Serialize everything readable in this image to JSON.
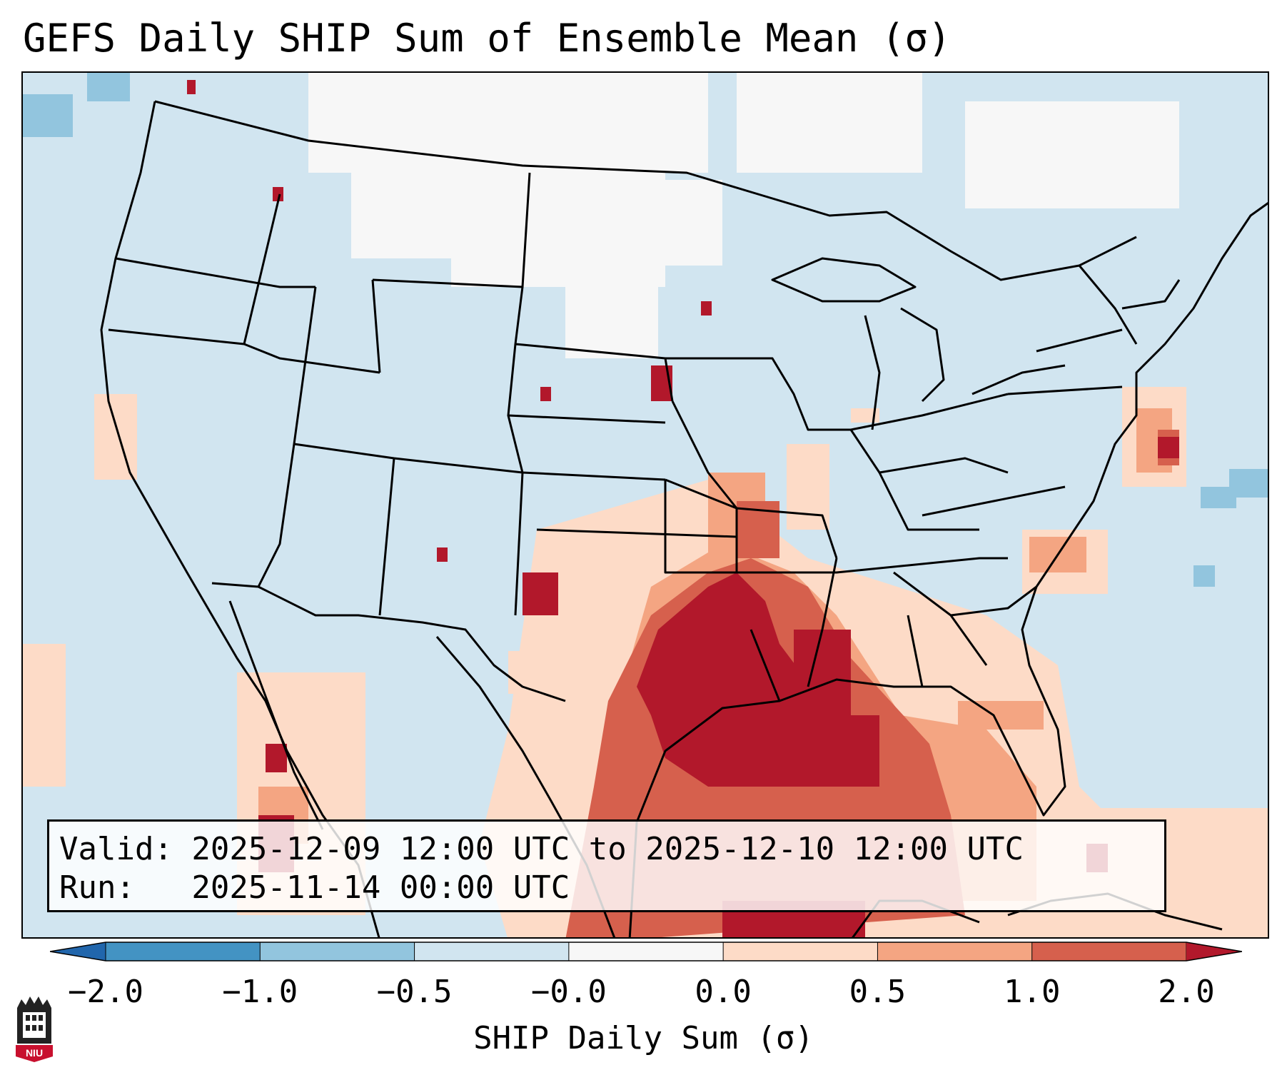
{
  "title": "GEFS Daily SHIP Sum of Ensemble Mean (σ)",
  "info": {
    "valid": "Valid: 2025-12-09 12:00 UTC to 2025-12-10 12:00 UTC",
    "run": "Run:   2025-11-14 00:00 UTC"
  },
  "colorbar": {
    "label": "SHIP Daily Sum (σ)",
    "ticks": [
      "−2.0",
      "−1.0",
      "−0.5",
      "−0.0",
      "0.0",
      "0.5",
      "1.0",
      "2.0"
    ],
    "bin_colors": [
      "#4393c3",
      "#92c5de",
      "#d1e5f0",
      "#f7f7f7",
      "#fddbc7",
      "#f4a582",
      "#d6604d",
      "#b2182b"
    ],
    "under_color": "#2166ac",
    "over_color": "#b2182b"
  },
  "logo": {
    "text": "NIU",
    "icon": "niu-logo-icon"
  },
  "colors": {
    "background_field": "#d1e5f0",
    "outline": "#000000"
  }
}
